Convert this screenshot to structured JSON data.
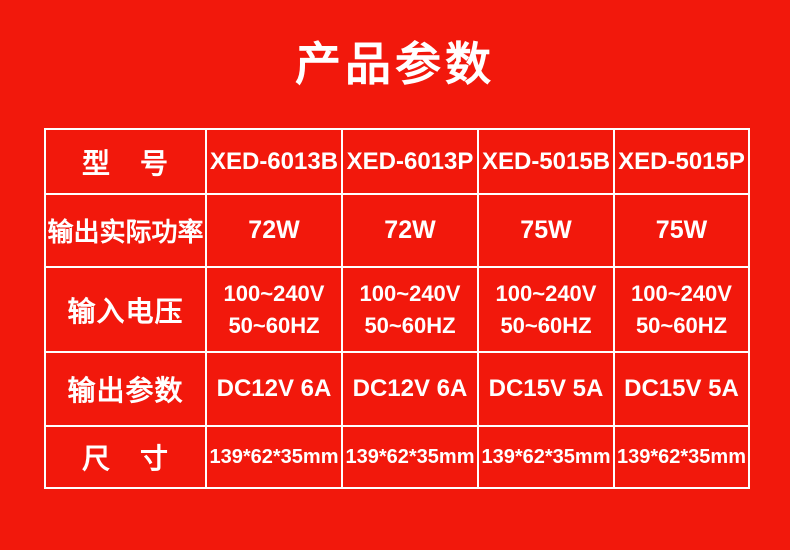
{
  "page": {
    "title": "产品参数",
    "background_color": "#F2180C",
    "text_color": "#FFFFFF",
    "border_color": "#FFFFFF"
  },
  "table": {
    "rows": [
      {
        "label": "型　号",
        "values": [
          "XED-6013B",
          "XED-6013P",
          "XED-5015B",
          "XED-5015P"
        ]
      },
      {
        "label": "输出实际功率",
        "values": [
          "72W",
          "72W",
          "75W",
          "75W"
        ]
      },
      {
        "label": "输入电压",
        "values": [
          "100~240V\n50~60HZ",
          "100~240V\n50~60HZ",
          "100~240V\n50~60HZ",
          "100~240V\n50~60HZ"
        ]
      },
      {
        "label": "输出参数",
        "values": [
          "DC12V 6A",
          "DC12V 6A",
          "DC15V 5A",
          "DC15V 5A"
        ]
      },
      {
        "label": "尺　寸",
        "values": [
          "139*62*35mm",
          "139*62*35mm",
          "139*62*35mm",
          "139*62*35mm"
        ]
      }
    ]
  },
  "chart_data": {
    "type": "table",
    "title": "产品参数",
    "columns": [
      "型号",
      "XED-6013B",
      "XED-6013P",
      "XED-5015B",
      "XED-5015P"
    ],
    "rows": [
      [
        "输出实际功率",
        "72W",
        "72W",
        "75W",
        "75W"
      ],
      [
        "输入电压",
        "100~240V 50~60HZ",
        "100~240V 50~60HZ",
        "100~240V 50~60HZ",
        "100~240V 50~60HZ"
      ],
      [
        "输出参数",
        "DC12V 6A",
        "DC12V 6A",
        "DC15V 5A",
        "DC15V 5A"
      ],
      [
        "尺寸",
        "139*62*35mm",
        "139*62*35mm",
        "139*62*35mm",
        "139*62*35mm"
      ]
    ],
    "layout": {
      "header_row": true,
      "grid": true,
      "background": "#F2180C",
      "grid_color": "#FFFFFF"
    }
  }
}
